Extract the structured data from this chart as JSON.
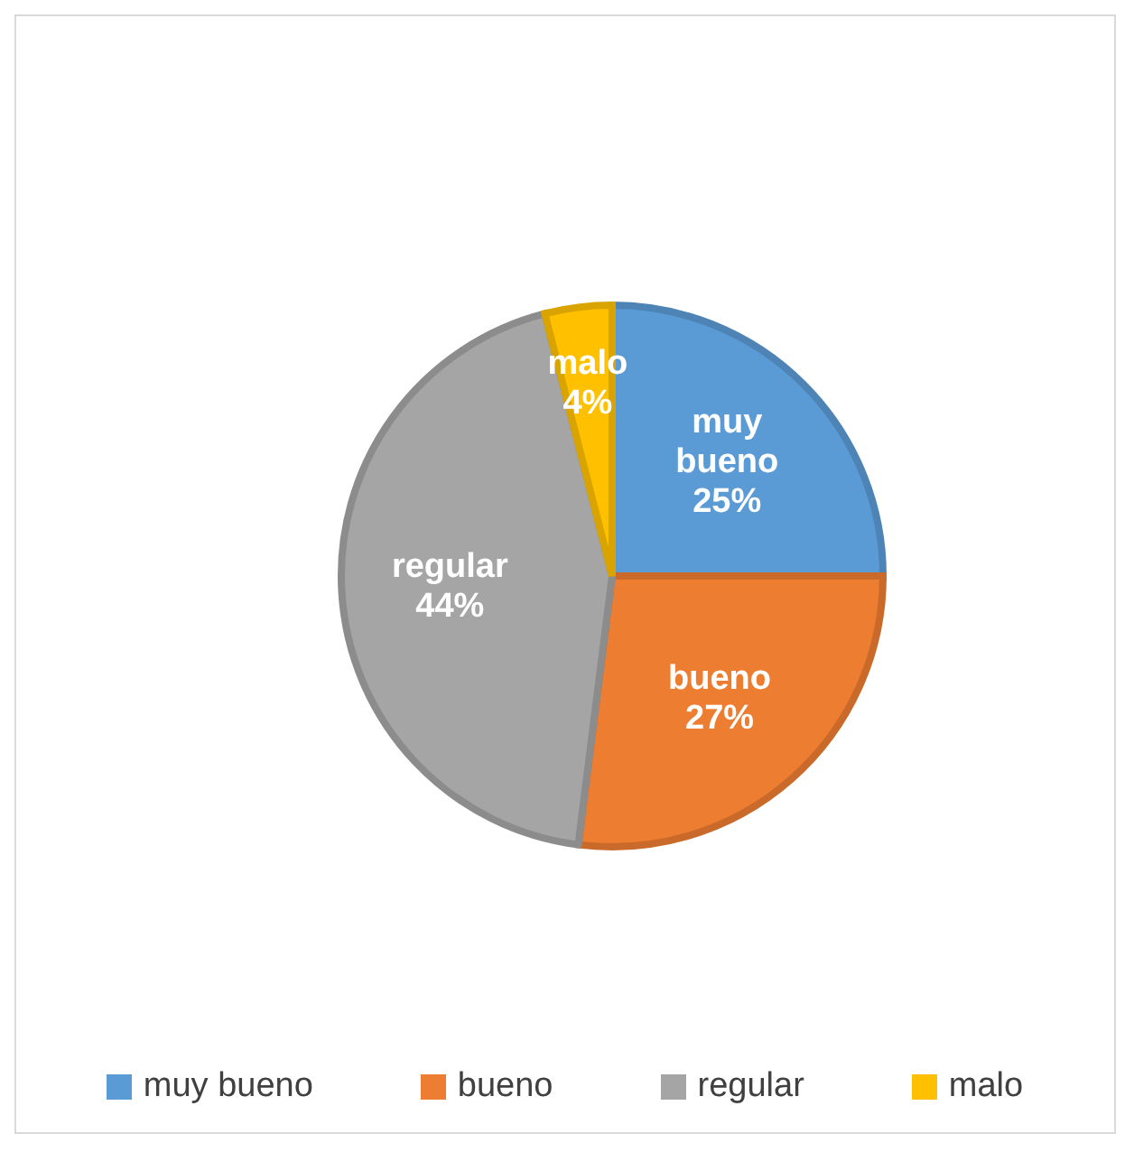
{
  "chart_data": {
    "type": "pie",
    "categories": [
      "muy bueno",
      "bueno",
      "regular",
      "malo"
    ],
    "values": [
      25,
      27,
      44,
      4
    ],
    "colors": [
      "#5b9bd5",
      "#ed7d31",
      "#a5a5a5",
      "#ffc000"
    ],
    "value_labels": [
      "25%",
      "27%",
      "44%",
      "4%"
    ],
    "legend": "bottom"
  }
}
